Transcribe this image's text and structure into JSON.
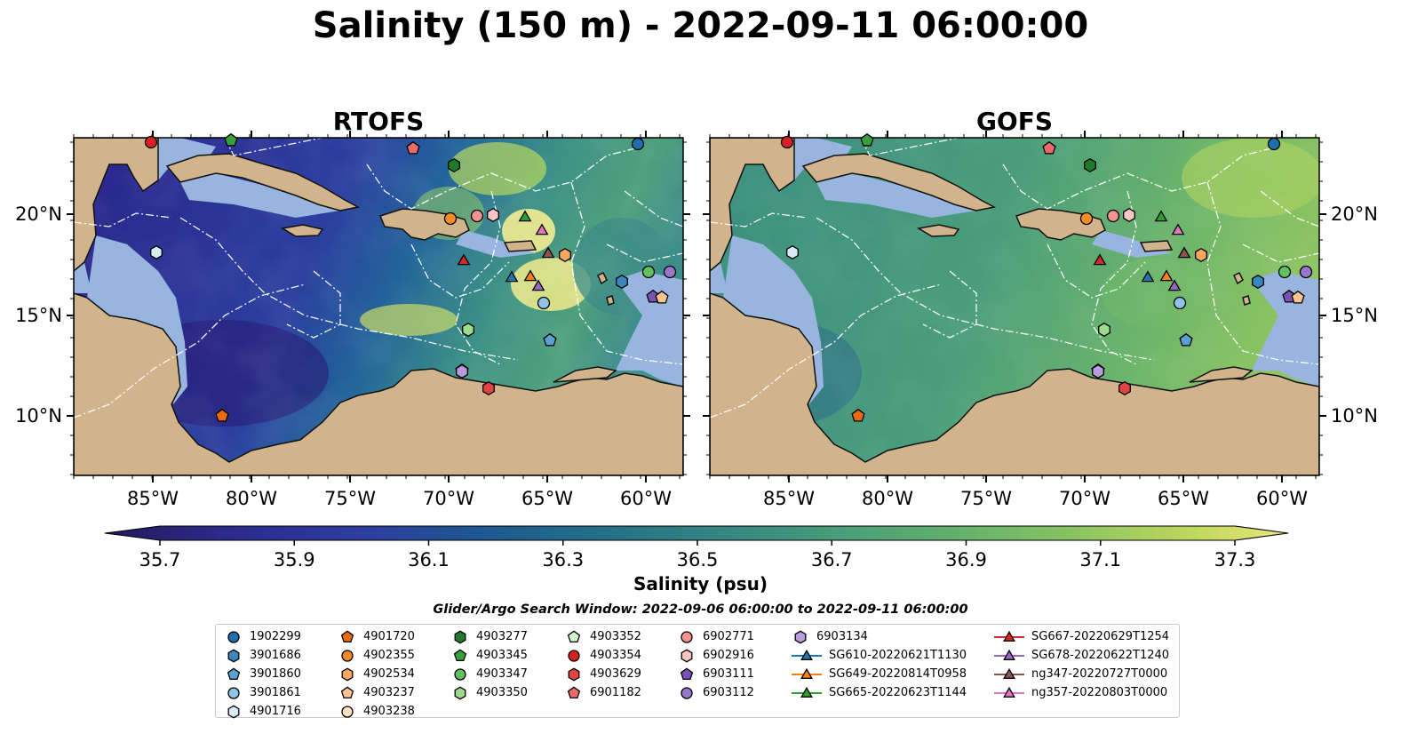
{
  "title": "Salinity (150 m) - 2022-09-11 06:00:00",
  "panels": [
    {
      "title": "RTOFS"
    },
    {
      "title": "GOFS"
    }
  ],
  "axes": {
    "lon_ticks": [
      "85°W",
      "80°W",
      "75°W",
      "70°W",
      "65°W",
      "60°W"
    ],
    "lat_ticks": [
      "20°N",
      "15°N",
      "10°N"
    ]
  },
  "colorbar": {
    "label": "Salinity (psu)",
    "ticks": [
      "35.7",
      "35.9",
      "36.1",
      "36.3",
      "36.5",
      "36.7",
      "36.9",
      "37.1",
      "37.3"
    ],
    "colors": [
      "#2a1e6e",
      "#2c2a8c",
      "#2d3d9e",
      "#214f96",
      "#175f8c",
      "#1e6d86",
      "#2a7b82",
      "#378a7e",
      "#46987a",
      "#56a673",
      "#66b26c",
      "#7cbd67",
      "#98c860",
      "#b6d45d",
      "#d4df66"
    ]
  },
  "window_text": "Glider/Argo Search Window: 2022-09-06 06:00:00 to 2022-09-11 06:00:00",
  "legend": {
    "columns": [
      [
        {
          "label": "1902299",
          "marker": "circle",
          "color": "#1f6fad"
        },
        {
          "label": "3901686",
          "marker": "hexagon",
          "color": "#3a86bf"
        },
        {
          "label": "3901860",
          "marker": "pentagon",
          "color": "#5b9fd3"
        },
        {
          "label": "3901861",
          "marker": "circle",
          "color": "#8fc3e6"
        },
        {
          "label": "4901716",
          "marker": "hexagon",
          "color": "#d9ebf7"
        }
      ],
      [
        {
          "label": "4901720",
          "marker": "pentagon",
          "color": "#e86a0c"
        },
        {
          "label": "4902355",
          "marker": "circle",
          "color": "#f58a2a"
        },
        {
          "label": "4902534",
          "marker": "hexagon",
          "color": "#f9a85e"
        },
        {
          "label": "4903237",
          "marker": "pentagon",
          "color": "#fcc48f"
        },
        {
          "label": "4903238",
          "marker": "circle",
          "color": "#fde3c4"
        }
      ],
      [
        {
          "label": "4903277",
          "marker": "hexagon",
          "color": "#1f7a2a"
        },
        {
          "label": "4903345",
          "marker": "pentagon",
          "color": "#35a03c"
        },
        {
          "label": "4903347",
          "marker": "circle",
          "color": "#5fc25e"
        },
        {
          "label": "4903350",
          "marker": "hexagon",
          "color": "#9bdb8d"
        }
      ],
      [
        {
          "label": "4903352",
          "marker": "pentagon",
          "color": "#d6f2cc"
        },
        {
          "label": "4903354",
          "marker": "circle",
          "color": "#d62222"
        },
        {
          "label": "4903629",
          "marker": "hexagon",
          "color": "#e04444"
        },
        {
          "label": "6901182",
          "marker": "pentagon",
          "color": "#ea6a6a"
        }
      ],
      [
        {
          "label": "6902771",
          "marker": "circle",
          "color": "#f4938f"
        },
        {
          "label": "6902916",
          "marker": "hexagon",
          "color": "#f9c6c4"
        },
        {
          "label": "6903111",
          "marker": "pentagon",
          "color": "#7a52b5"
        },
        {
          "label": "6903112",
          "marker": "circle",
          "color": "#9a77cf"
        }
      ],
      [
        {
          "label": "6903134",
          "marker": "hexagon",
          "color": "#b99be0"
        },
        {
          "label": "SG610-20220621T1130",
          "marker": "triangle-line",
          "color": "#1f77b4"
        },
        {
          "label": "SG649-20220814T0958",
          "marker": "triangle-line",
          "color": "#ff7f0e"
        },
        {
          "label": "SG665-20220623T1144",
          "marker": "triangle-line",
          "color": "#2ca02c"
        }
      ],
      [
        {
          "label": "SG667-20220629T1254",
          "marker": "triangle-line",
          "color": "#d62728"
        },
        {
          "label": "SG678-20220622T1240",
          "marker": "triangle-line",
          "color": "#9467bd"
        },
        {
          "label": "ng347-20220727T0000",
          "marker": "triangle-line",
          "color": "#8c564b"
        },
        {
          "label": "ng357-20220803T0000",
          "marker": "triangle-line",
          "color": "#e377c2"
        }
      ]
    ]
  }
}
